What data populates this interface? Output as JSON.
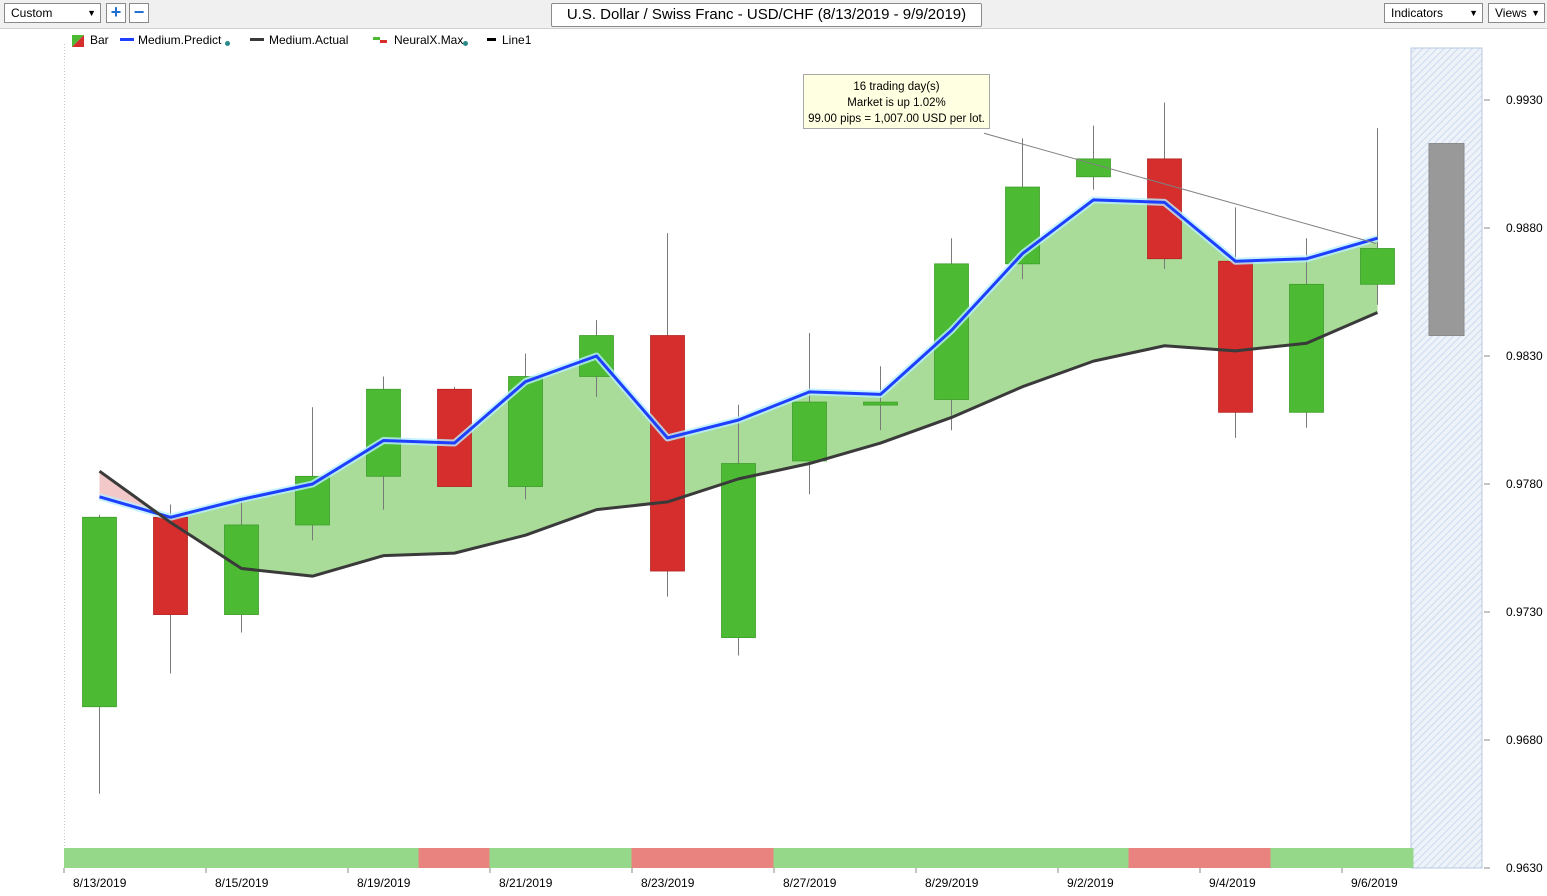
{
  "toolbar": {
    "period_value": "Custom",
    "zoom_in_label": "+",
    "zoom_out_label": "−",
    "title": "U.S. Dollar / Swiss Franc - USD/CHF (8/13/2019 - 9/9/2019)",
    "indicators_label": "Indicators",
    "views_label": "Views",
    "dropdown_arrow": "▼"
  },
  "legend": [
    {
      "label": "Bar",
      "icon": "bar-swatch"
    },
    {
      "label": "Medium.Predict",
      "icon": "blue-line-swatch"
    },
    {
      "label": "Medium.Actual",
      "icon": "dark-line-swatch"
    },
    {
      "label": "NeuralX.Max",
      "icon": "neural-swatch"
    },
    {
      "label": "Line1",
      "icon": "black-line-swatch"
    }
  ],
  "tooltip": {
    "line1": "16 trading day(s)",
    "line2": "Market is up 1.02%",
    "line3": "99.00 pips = 1,007.00 USD per lot."
  },
  "colors": {
    "up": "#4cbb33",
    "down": "#d62d2d",
    "predict": "#1f3fff",
    "actual": "#3a3a3a",
    "band": "#a8dc98",
    "band_neg": "#f2c8c8",
    "strip_up": "#96d88a",
    "strip_down": "#e98380",
    "forecast": "#999999"
  },
  "chart_data": {
    "type": "candlestick",
    "ylim": [
      0.963,
      0.995
    ],
    "y_ticks": [
      "0.9930",
      "0.9880",
      "0.9830",
      "0.9780",
      "0.9730",
      "0.9680",
      "0.9630"
    ],
    "x_tick_labels": [
      "8/13/2019",
      "8/15/2019",
      "8/19/2019",
      "8/21/2019",
      "8/23/2019",
      "8/27/2019",
      "8/29/2019",
      "9/2/2019",
      "9/4/2019",
      "9/6/2019"
    ],
    "candles": [
      {
        "open": 0.9693,
        "high": 0.9768,
        "low": 0.9659,
        "close": 0.9767
      },
      {
        "open": 0.9767,
        "high": 0.9772,
        "low": 0.9706,
        "close": 0.9729
      },
      {
        "open": 0.9729,
        "high": 0.9774,
        "low": 0.9722,
        "close": 0.9764
      },
      {
        "open": 0.9764,
        "high": 0.981,
        "low": 0.9758,
        "close": 0.9783
      },
      {
        "open": 0.9783,
        "high": 0.9822,
        "low": 0.977,
        "close": 0.9817
      },
      {
        "open": 0.9817,
        "high": 0.9818,
        "low": 0.9779,
        "close": 0.9779
      },
      {
        "open": 0.9779,
        "high": 0.9831,
        "low": 0.9774,
        "close": 0.9822
      },
      {
        "open": 0.9822,
        "high": 0.9844,
        "low": 0.9814,
        "close": 0.9838
      },
      {
        "open": 0.9838,
        "high": 0.9878,
        "low": 0.9736,
        "close": 0.9746
      },
      {
        "open": 0.972,
        "high": 0.9811,
        "low": 0.9713,
        "close": 0.9788
      },
      {
        "open": 0.9789,
        "high": 0.9839,
        "low": 0.9776,
        "close": 0.9812
      },
      {
        "open": 0.9811,
        "high": 0.9826,
        "low": 0.9801,
        "close": 0.9812
      },
      {
        "open": 0.9813,
        "high": 0.9876,
        "low": 0.9801,
        "close": 0.9866
      },
      {
        "open": 0.9866,
        "high": 0.9915,
        "low": 0.986,
        "close": 0.9896
      },
      {
        "open": 0.99,
        "high": 0.992,
        "low": 0.9895,
        "close": 0.9907
      },
      {
        "open": 0.9907,
        "high": 0.9929,
        "low": 0.9864,
        "close": 0.9868
      },
      {
        "open": 0.9867,
        "high": 0.9888,
        "low": 0.9798,
        "close": 0.9808
      },
      {
        "open": 0.9808,
        "high": 0.9876,
        "low": 0.9802,
        "close": 0.9858
      },
      {
        "open": 0.9858,
        "high": 0.9919,
        "low": 0.985,
        "close": 0.9872
      }
    ],
    "medium_predict": [
      0.9775,
      0.9767,
      0.9774,
      0.978,
      0.9797,
      0.9796,
      0.982,
      0.983,
      0.9798,
      0.9805,
      0.9816,
      0.9815,
      0.984,
      0.987,
      0.9891,
      0.989,
      0.9867,
      0.9868,
      0.9876
    ],
    "medium_actual": [
      0.9785,
      0.9765,
      0.9747,
      0.9744,
      0.9752,
      0.9753,
      0.976,
      0.977,
      0.9773,
      0.9782,
      0.9788,
      0.9796,
      0.9806,
      0.9818,
      0.9828,
      0.9834,
      0.9832,
      0.9835,
      0.9847
    ],
    "line1": {
      "from_value": 0.9917,
      "to_value": 0.9874
    },
    "forecast_bar": {
      "high": 0.9913,
      "low": 0.9838
    },
    "signal_strip": [
      "up",
      "up",
      "up",
      "up",
      "up",
      "down",
      "up",
      "up",
      "down",
      "down",
      "up",
      "up",
      "up",
      "up",
      "up",
      "down",
      "down",
      "up",
      "up"
    ]
  }
}
